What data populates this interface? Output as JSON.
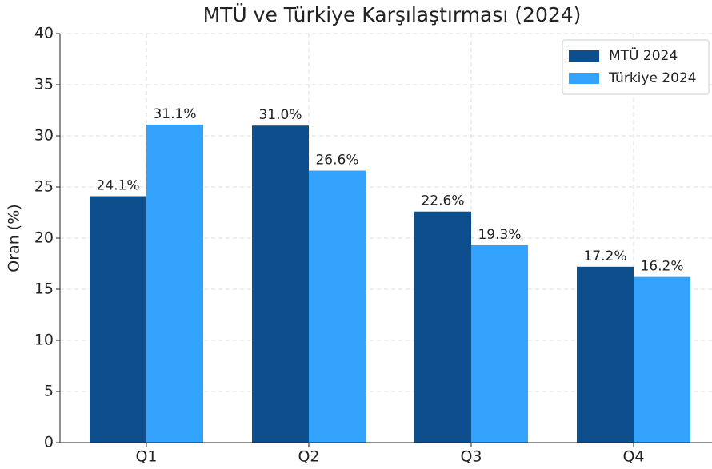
{
  "chart_data": {
    "type": "bar",
    "title": "MTÜ ve Türkiye Karşılaştırması (2024)",
    "y_label": "Oran (%)",
    "categories": [
      "Q1",
      "Q2",
      "Q3",
      "Q4"
    ],
    "series": [
      {
        "name": "MTÜ 2024",
        "color": "#0c4f8c",
        "values": [
          24.1,
          31.0,
          22.6,
          17.2
        ],
        "value_labels": [
          "24.1%",
          "31.0%",
          "22.6%",
          "17.2%"
        ]
      },
      {
        "name": "Türkiye 2024",
        "color": "#33a3fd",
        "values": [
          31.1,
          26.6,
          19.3,
          16.2
        ],
        "value_labels": [
          "31.1%",
          "26.6%",
          "19.3%",
          "16.2%"
        ]
      }
    ],
    "ylim": [
      0,
      40
    ],
    "yticks": [
      0,
      5,
      10,
      15,
      20,
      25,
      30,
      35,
      40
    ],
    "grid": true,
    "legend": "upper right"
  }
}
